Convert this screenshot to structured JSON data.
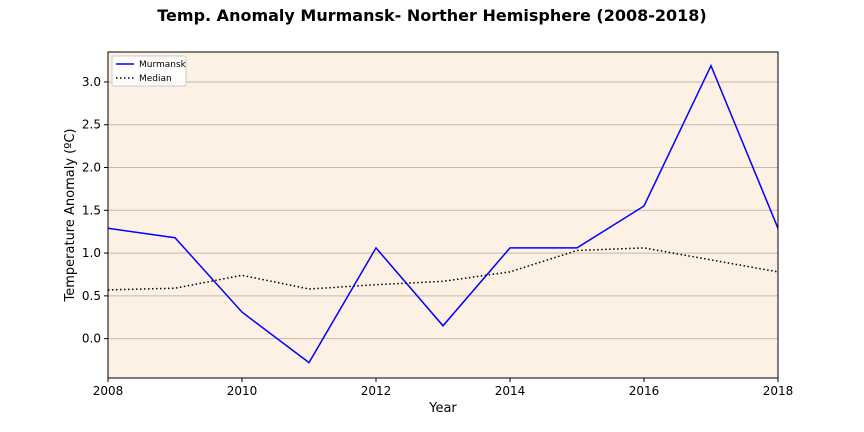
{
  "chart_data": {
    "type": "line",
    "title": "Temp. Anomaly Murmansk- Norther Hemisphere (2008-2018)",
    "xlabel": "Year",
    "ylabel": "Temperature Anomaly (ºC)",
    "x": [
      2008,
      2009,
      2010,
      2011,
      2012,
      2013,
      2014,
      2015,
      2016,
      2017,
      2018
    ],
    "xlim": [
      2008,
      2018
    ],
    "ylim": [
      -0.46,
      3.35
    ],
    "xticks": [
      "2008",
      "2010",
      "2012",
      "2014",
      "2016",
      "2018"
    ],
    "yticks": [
      "0.0",
      "0.5",
      "1.0",
      "1.5",
      "2.0",
      "2.5",
      "3.0"
    ],
    "grid": "horizontal",
    "legend_position": "top-left",
    "background": "#fdf0e5",
    "series": [
      {
        "name": "Murmansk",
        "color": "#0000ff",
        "style": "solid",
        "values": [
          1.29,
          1.18,
          0.31,
          -0.28,
          1.06,
          0.15,
          1.06,
          1.06,
          1.55,
          3.19,
          1.29
        ]
      },
      {
        "name": "Median",
        "color": "#000000",
        "style": "dotted",
        "values": [
          0.57,
          0.59,
          0.74,
          0.58,
          0.63,
          0.67,
          0.78,
          1.03,
          1.06,
          0.92,
          0.78
        ]
      }
    ]
  }
}
